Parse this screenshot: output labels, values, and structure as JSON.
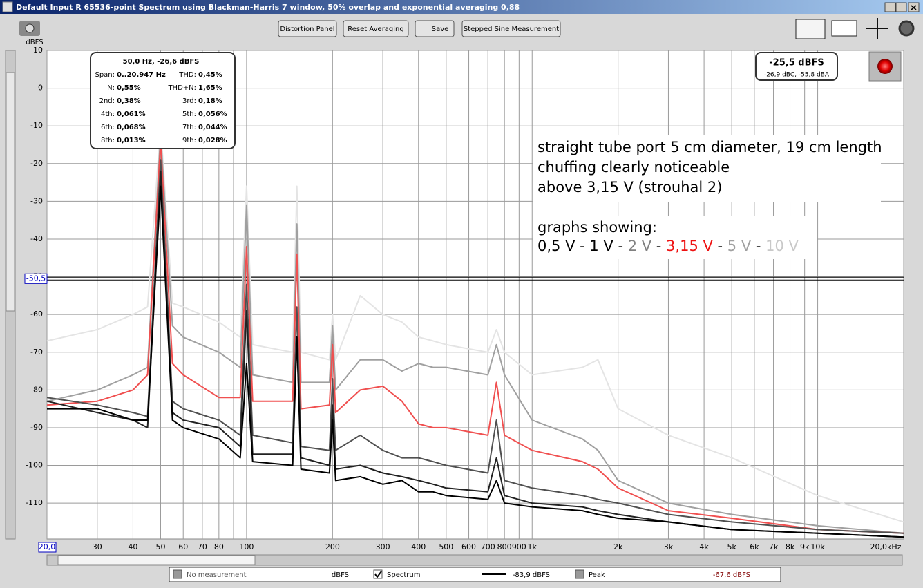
{
  "window": {
    "title": "Default Input R 65536-point Spectrum using Blackman-Harris 7 window, 50% overlap and exponential averaging 0,88"
  },
  "toolbar": {
    "buttons": [
      "Distortion Panel",
      "Reset Averaging",
      "Save",
      "Stepped Sine Measurement"
    ]
  },
  "distortion_panel": {
    "header": "50,0 Hz, -26,6 dBFS",
    "rows": [
      [
        [
          "Span:",
          "0..20.947 Hz"
        ],
        [
          "THD:",
          "0,45%"
        ]
      ],
      [
        [
          "N:",
          "0,55%"
        ],
        [
          "THD+N:",
          "1,65%"
        ]
      ],
      [
        [
          "2nd:",
          "0,38%"
        ],
        [
          "3rd:",
          "0,18%"
        ]
      ],
      [
        [
          "4th:",
          "0,061%"
        ],
        [
          "5th:",
          "0,056%"
        ]
      ],
      [
        [
          "6th:",
          "0,068%"
        ],
        [
          "7th:",
          "0,044%"
        ]
      ],
      [
        [
          "8th:",
          "0,013%"
        ],
        [
          "9th:",
          "0,028%"
        ]
      ]
    ]
  },
  "level_box": {
    "main": "-25,5 dBFS",
    "sub": "-26,9 dBC, -55,8 dBA"
  },
  "legend_bar": {
    "items": [
      "No measurement",
      "dBFS",
      "Spectrum",
      "-83,9 dBFS",
      "Peak",
      "-67,6 dBFS"
    ]
  },
  "chart_data": {
    "type": "line",
    "y_label": "dBFS",
    "log_x": true,
    "grid": true,
    "xlim": [
      20,
      20000
    ],
    "ylim": [
      -119.5,
      10
    ],
    "xticks": [
      {
        "value": 20,
        "label": "20,0"
      },
      30,
      40,
      50,
      60,
      70,
      80,
      {
        "value": 90,
        "label": null
      },
      100,
      200,
      300,
      400,
      500,
      600,
      700,
      800,
      900,
      {
        "value": 1000,
        "label": "1k"
      },
      {
        "value": 2000,
        "label": "2k"
      },
      {
        "value": 3000,
        "label": "3k"
      },
      {
        "value": 4000,
        "label": "4k"
      },
      {
        "value": 5000,
        "label": "5k"
      },
      {
        "value": 6000,
        "label": "6k"
      },
      {
        "value": 7000,
        "label": "7k"
      },
      {
        "value": 8000,
        "label": "8k"
      },
      {
        "value": 9000,
        "label": "9k"
      },
      {
        "value": 10000,
        "label": "10k"
      },
      {
        "value": 20000,
        "label": "20,0kHz"
      }
    ],
    "yticks": [
      10,
      0,
      -10,
      -20,
      -30,
      -40,
      -50,
      -60,
      -70,
      -80,
      -90,
      -100,
      -110
    ],
    "cursor": {
      "value": -50.5,
      "label": "-50,5"
    },
    "annotation": {
      "lines": [
        "straight tube port 5 cm diameter, 19 cm length",
        "chuffing clearly noticeable",
        "above 3,15 V (strouhal 2)",
        "graphs showing:"
      ],
      "segments": [
        {
          "text": "0,5 V - 1 V - ",
          "color": "#000000"
        },
        {
          "text": "2 V",
          "color": "#808080"
        },
        {
          "text": " - ",
          "color": "#000000"
        },
        {
          "text": "3,15 V",
          "color": "#ee1111"
        },
        {
          "text": " - ",
          "color": "#000000"
        },
        {
          "text": "5 V",
          "color": "#a0a0a0"
        },
        {
          "text": " - ",
          "color": "#000000"
        },
        {
          "text": "10 V",
          "color": "#c8c8c8"
        }
      ]
    },
    "x": [
      20,
      30,
      40,
      45,
      50,
      55,
      60,
      80,
      95,
      100,
      105,
      145,
      150,
      155,
      195,
      200,
      205,
      250,
      300,
      350,
      400,
      450,
      500,
      700,
      750,
      800,
      1000,
      1500,
      1700,
      2000,
      3000,
      5000,
      10000,
      20000
    ],
    "series": [
      {
        "color": "#e4e4e4",
        "values": [
          -67,
          -64,
          -60,
          -58,
          -10,
          -57,
          -58,
          -62,
          -66,
          -26,
          -68,
          -70,
          -26,
          -70,
          -72,
          -60,
          -72,
          -55,
          -60,
          -62,
          -66,
          -67,
          -68,
          -70,
          -64,
          -70,
          -76,
          -74,
          -72,
          -85,
          -92,
          -98,
          -108,
          -115
        ]
      },
      {
        "color": "#a0a0a0",
        "values": [
          -83,
          -80,
          -76,
          -74,
          -12,
          -63,
          -66,
          -70,
          -74,
          -31,
          -76,
          -78,
          -36,
          -78,
          -78,
          -63,
          -80,
          -72,
          -72,
          -75,
          -73,
          -74,
          -74,
          -76,
          -68,
          -76,
          -88,
          -93,
          -96,
          -104,
          -110,
          -113,
          -116,
          -118
        ]
      },
      {
        "color": "#f05050",
        "values": [
          -84,
          -83,
          -80,
          -76,
          -14,
          -73,
          -76,
          -82,
          -82,
          -42,
          -83,
          -83,
          -44,
          -85,
          -84,
          -68,
          -86,
          -80,
          -79,
          -83,
          -89,
          -90,
          -90,
          -92,
          -78,
          -92,
          -96,
          -99,
          -101,
          -106,
          -112,
          -114,
          -117,
          -118
        ]
      },
      {
        "color": "#505050",
        "values": [
          -82,
          -84,
          -86,
          -87,
          -19,
          -83,
          -85,
          -88,
          -92,
          -52,
          -92,
          -94,
          -58,
          -95,
          -96,
          -77,
          -96,
          -92,
          -96,
          -98,
          -98,
          -99,
          -100,
          -102,
          -88,
          -104,
          -106,
          -108,
          -109,
          -110,
          -113,
          -115,
          -117,
          -118
        ]
      },
      {
        "color": "#222222",
        "values": [
          -83,
          -86,
          -88,
          -90,
          -22,
          -86,
          -88,
          -90,
          -95,
          -59,
          -97,
          -97,
          -66,
          -98,
          -100,
          -84,
          -101,
          -100,
          -102,
          -103,
          -104,
          -105,
          -106,
          -107,
          -98,
          -108,
          -110,
          -111,
          -112,
          -113,
          -115,
          -117,
          -118,
          -119
        ]
      },
      {
        "color": "#000000",
        "values": [
          -85,
          -85,
          -88,
          -88,
          -26,
          -88,
          -90,
          -93,
          -98,
          -73,
          -99,
          -100,
          -66,
          -101,
          -102,
          -88,
          -104,
          -103,
          -105,
          -104,
          -107,
          -107,
          -108,
          -109,
          -104,
          -110,
          -111,
          -112,
          -113,
          -114,
          -115,
          -117,
          -118,
          -119
        ]
      }
    ]
  }
}
